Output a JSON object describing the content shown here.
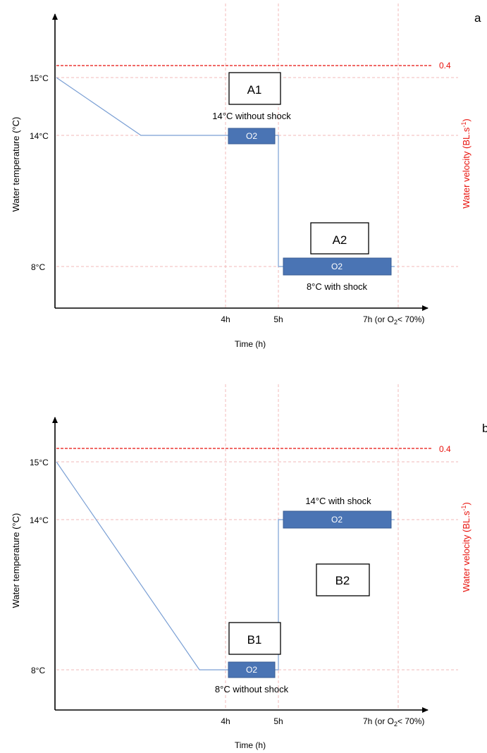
{
  "panel_a": {
    "letter": "a",
    "ylabel": "Water temperature (°C)",
    "y2label_main": "Water  velocity (BL.s",
    "y2label_sup": "-1",
    "y2label_end": ")",
    "velocity_label": "0.4",
    "yticks": [
      "15°C",
      "14°C",
      "8°C"
    ],
    "xticks": [
      "4h",
      "5h"
    ],
    "x_end_tick_main": "7h (or O",
    "x_end_tick_sub": "2",
    "x_end_tick_end": "< 70%)",
    "xlabel": "Time (h)",
    "stage1_label": "A1",
    "stage1_caption": "14°C without shock",
    "stage1_box": "O2",
    "stage2_label": "A2",
    "stage2_caption": "8°C with shock",
    "stage2_box": "O2"
  },
  "panel_b": {
    "letter": "b",
    "ylabel": "Water temperature (°C)",
    "y2label_main": "Water  velocity (BL.s",
    "y2label_sup": "-1",
    "y2label_end": ")",
    "velocity_label": "0.4",
    "yticks": [
      "15°C",
      "14°C",
      "8°C"
    ],
    "xticks": [
      "4h",
      "5h"
    ],
    "x_end_tick_main": "7h (or O",
    "x_end_tick_sub": "2",
    "x_end_tick_end": "< 70%)",
    "xlabel": "Time (h)",
    "stage1_label": "B1",
    "stage1_caption": "8°C without shock",
    "stage1_box": "O2",
    "stage2_label": "B2",
    "stage2_caption": "14°C with shock",
    "stage2_box": "O2"
  },
  "colors": {
    "velocity_line": "#e8120c",
    "temperature_line": "#7a9fd4",
    "o2_box_fill": "#4a74b4",
    "o2_box_stroke": "#3a5c93",
    "grid": "#f0b8b8"
  }
}
